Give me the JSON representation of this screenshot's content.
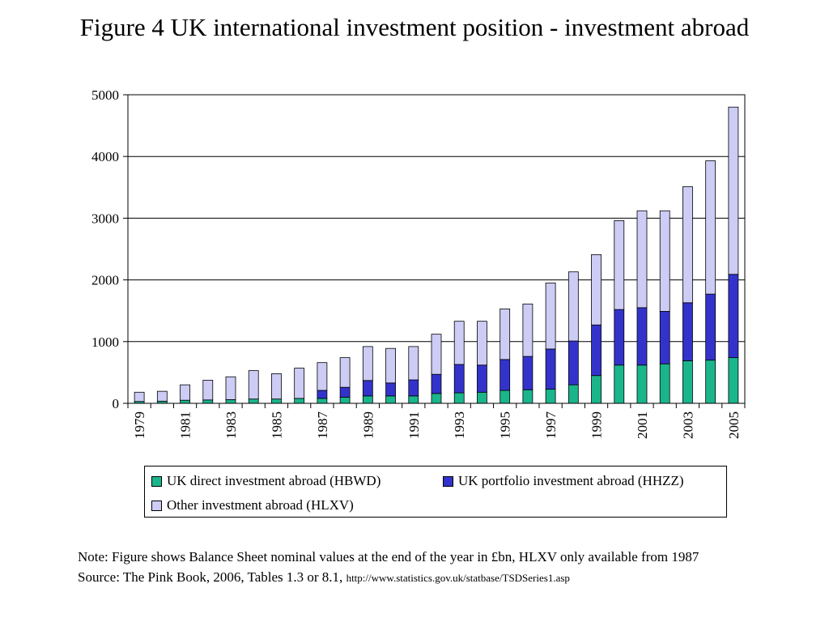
{
  "title": "Figure 4 UK international investment position - investment abroad",
  "notes": {
    "note": "Note: Figure shows Balance Sheet nominal values at the end of the year in £bn, HLXV only available from 1987",
    "source_label": "Source: The Pink Book, 2006, Tables 1.3 or  8.1,",
    "source_url": "http://www.statistics.gov.uk/statbase/TSDSeries1.asp"
  },
  "chart_data": {
    "type": "bar",
    "stacked": true,
    "title": "Figure 4 UK international investment position - investment abroad",
    "xlabel": "",
    "ylabel": "",
    "ylim": [
      0,
      5000
    ],
    "yticks": [
      0,
      1000,
      2000,
      3000,
      4000,
      5000
    ],
    "grid": true,
    "legend_position": "bottom",
    "categories": [
      "1979",
      "1980",
      "1981",
      "1982",
      "1983",
      "1984",
      "1985",
      "1986",
      "1987",
      "1988",
      "1989",
      "1990",
      "1991",
      "1992",
      "1993",
      "1994",
      "1995",
      "1996",
      "1997",
      "1998",
      "1999",
      "2000",
      "2001",
      "2002",
      "2003",
      "2004",
      "2005"
    ],
    "tick_labels": [
      "1979",
      "1981",
      "1983",
      "1985",
      "1987",
      "1989",
      "1991",
      "1993",
      "1995",
      "1997",
      "1999",
      "2001",
      "2003",
      "2005"
    ],
    "series": [
      {
        "name": "UK direct investment abroad (HBWD)",
        "color": "#1bb58c",
        "values": [
          30,
          35,
          50,
          55,
          60,
          70,
          70,
          80,
          80,
          100,
          120,
          120,
          120,
          160,
          170,
          180,
          210,
          220,
          230,
          300,
          450,
          620,
          620,
          640,
          690,
          700,
          740
        ]
      },
      {
        "name": "UK portfolio investment abroad (HHZZ)",
        "color": "#3333cc",
        "values": [
          0,
          0,
          0,
          0,
          0,
          0,
          0,
          0,
          130,
          160,
          250,
          210,
          260,
          310,
          460,
          440,
          500,
          540,
          650,
          710,
          820,
          900,
          930,
          850,
          940,
          1070,
          1350
        ]
      },
      {
        "name": "Other investment abroad (HLXV)",
        "color": "#ccccf5",
        "values": [
          150,
          160,
          250,
          320,
          370,
          460,
          410,
          490,
          450,
          480,
          550,
          560,
          540,
          650,
          700,
          710,
          820,
          850,
          1070,
          1120,
          1140,
          1440,
          1570,
          1630,
          1880,
          2160,
          2710
        ]
      }
    ]
  }
}
